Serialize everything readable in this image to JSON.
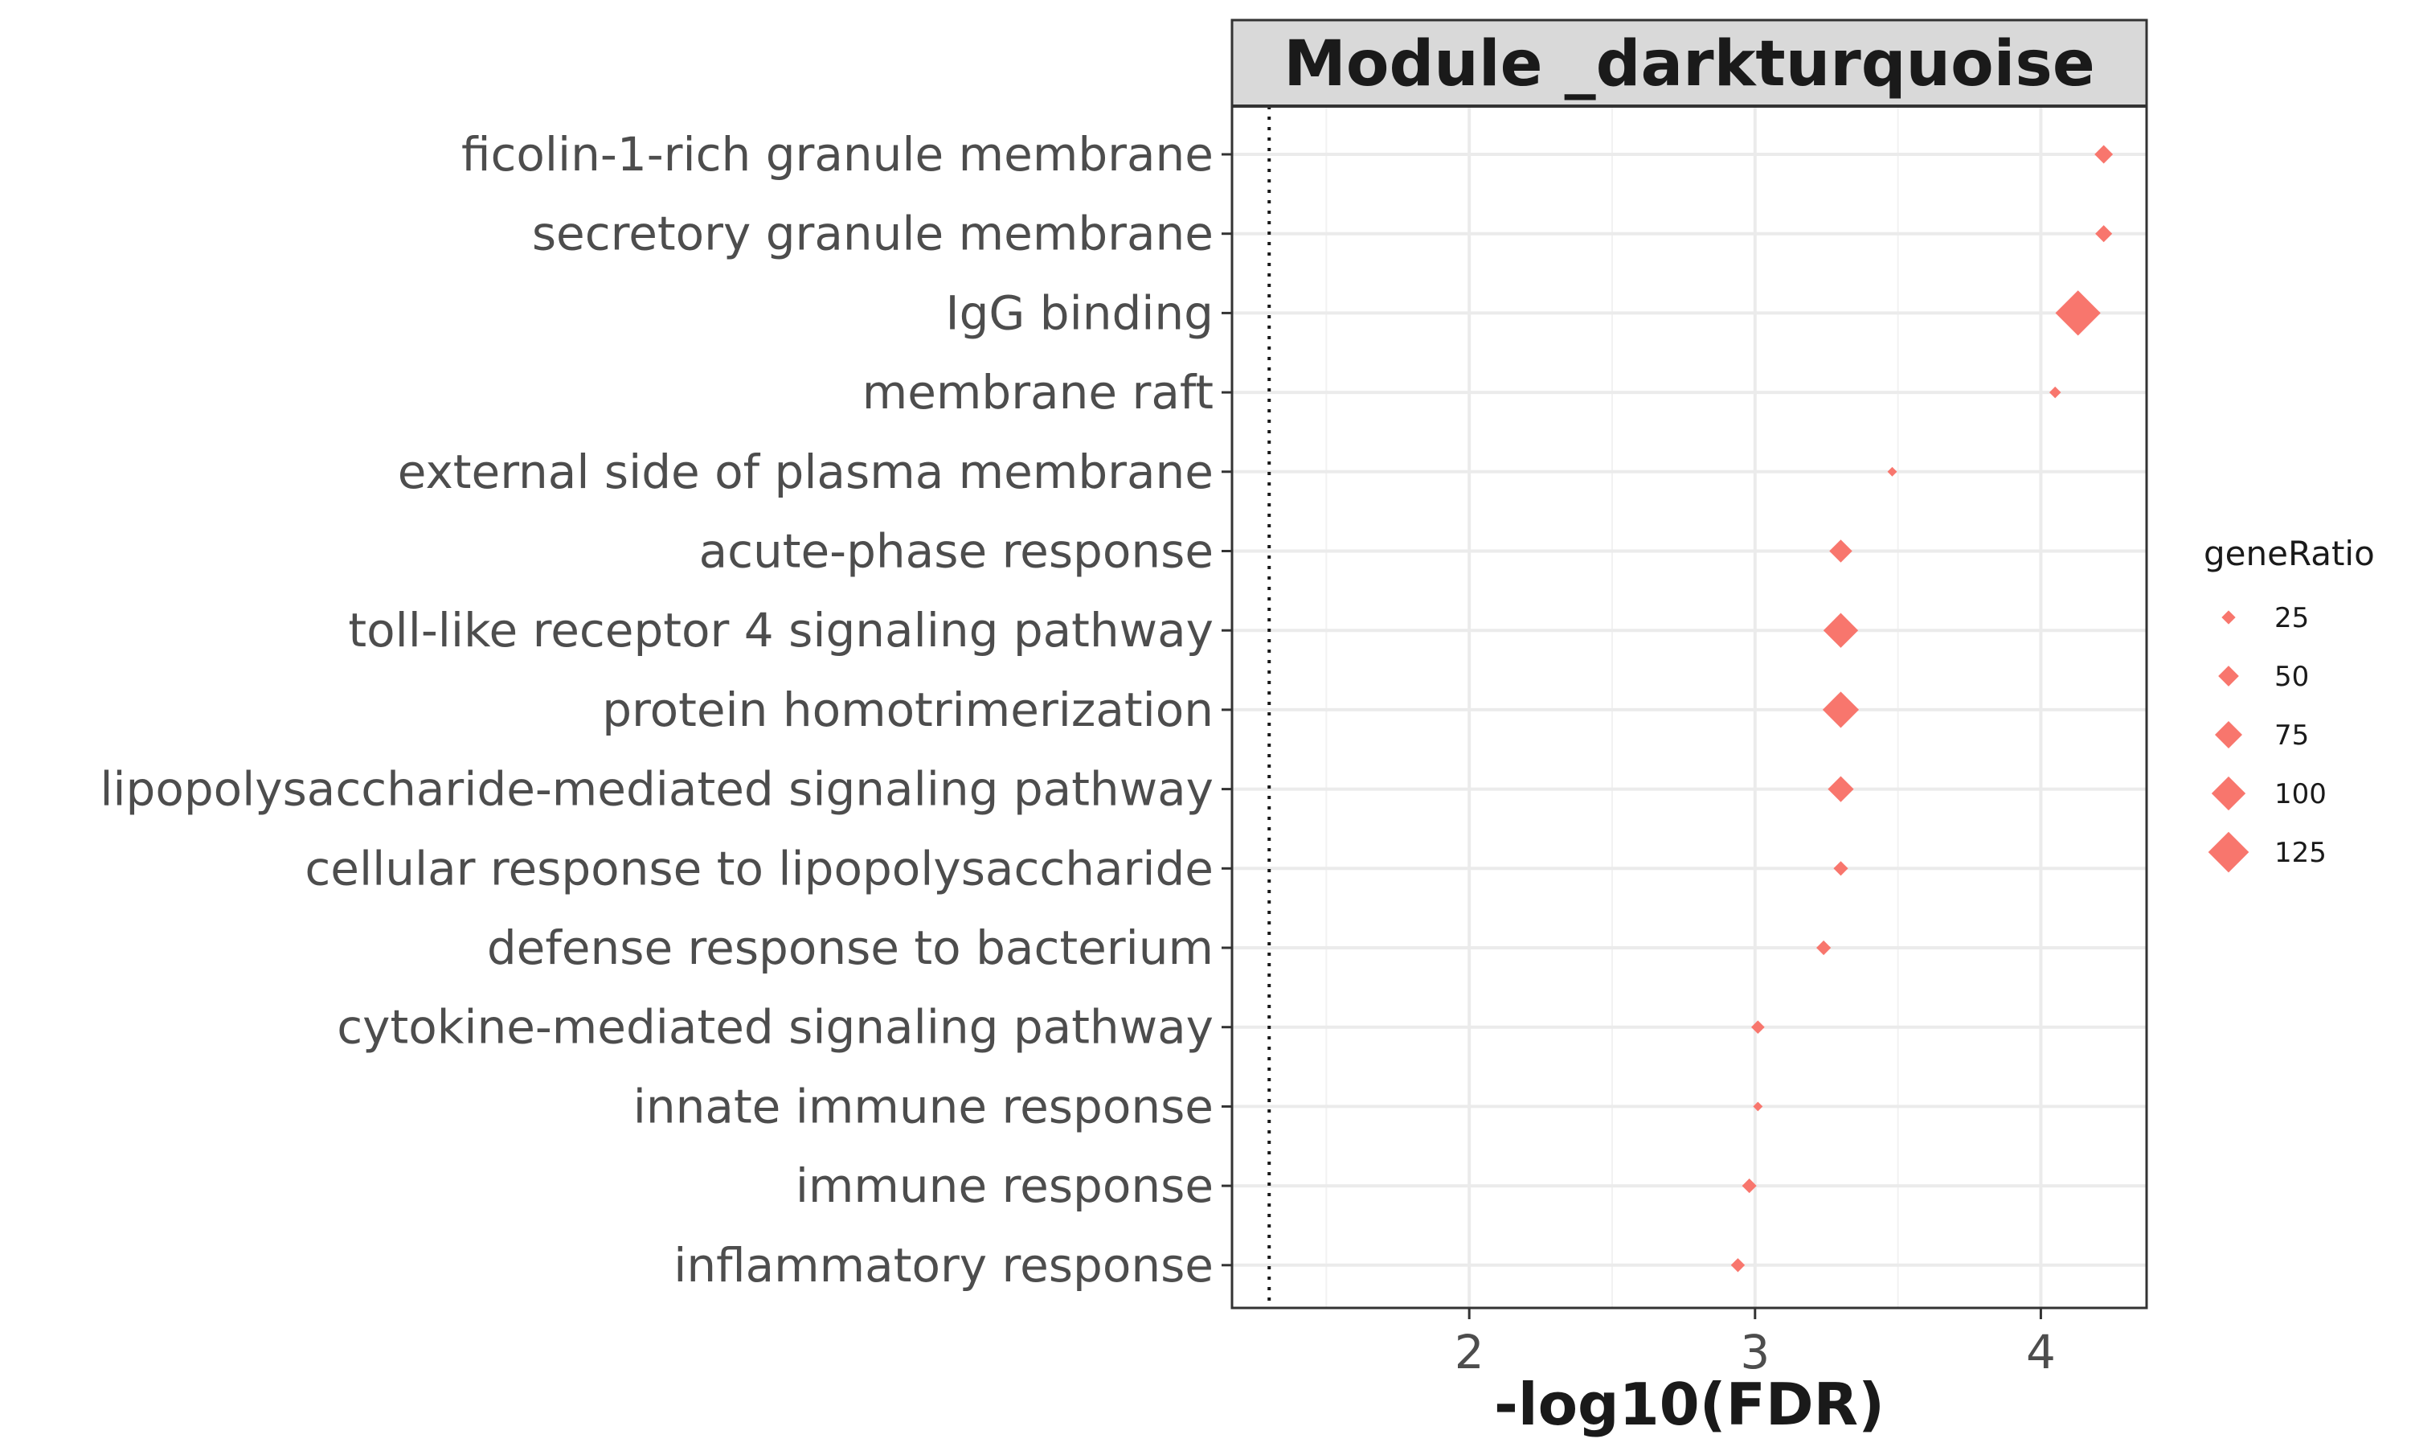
{
  "chart_data": {
    "type": "scatter",
    "title": "Module _darkturquoise",
    "xlabel": "-log10(FDR)",
    "ylabel": "",
    "xlim": [
      1.17,
      4.37
    ],
    "xticks": [
      2,
      3,
      4
    ],
    "xticks_labels": [
      "2",
      "3",
      "4"
    ],
    "reference_line_x": 1.3,
    "grid": true,
    "marker": "diamond",
    "point_color": "#f8766d",
    "legend": {
      "title": "geneRatio",
      "placement": "right",
      "items": [
        {
          "label": "25",
          "value": 25
        },
        {
          "label": "50",
          "value": 50
        },
        {
          "label": "75",
          "value": 75
        },
        {
          "label": "100",
          "value": 100
        },
        {
          "label": "125",
          "value": 125
        }
      ]
    },
    "categories": [
      "ficolin-1-rich granule membrane",
      "secretory granule membrane",
      "IgG binding",
      "membrane raft",
      "external side of plasma membrane",
      "acute-phase response",
      "toll-like receptor 4 signaling pathway",
      "protein homotrimerization",
      "lipopolysaccharide-mediated signaling pathway",
      "cellular response to lipopolysaccharide",
      "defense response to bacterium",
      "cytokine-mediated signaling pathway",
      "innate immune response",
      "immune response",
      "inflammatory response"
    ],
    "points": [
      {
        "category": "ficolin-1-rich granule membrane",
        "x": 4.22,
        "geneRatio": 35
      },
      {
        "category": "secretory granule membrane",
        "x": 4.22,
        "geneRatio": 30
      },
      {
        "category": "IgG binding",
        "x": 4.13,
        "geneRatio": 125
      },
      {
        "category": "membrane raft",
        "x": 4.05,
        "geneRatio": 12
      },
      {
        "category": "external side of plasma membrane",
        "x": 3.48,
        "geneRatio": 5
      },
      {
        "category": "acute-phase response",
        "x": 3.3,
        "geneRatio": 50
      },
      {
        "category": "toll-like receptor 4 signaling pathway",
        "x": 3.3,
        "geneRatio": 90
      },
      {
        "category": "protein homotrimerization",
        "x": 3.3,
        "geneRatio": 95
      },
      {
        "category": "lipopolysaccharide-mediated signaling pathway",
        "x": 3.3,
        "geneRatio": 60
      },
      {
        "category": "cellular response to lipopolysaccharide",
        "x": 3.3,
        "geneRatio": 22
      },
      {
        "category": "defense response to bacterium",
        "x": 3.24,
        "geneRatio": 22
      },
      {
        "category": "cytokine-mediated signaling pathway",
        "x": 3.01,
        "geneRatio": 18
      },
      {
        "category": "innate immune response",
        "x": 3.01,
        "geneRatio": 5
      },
      {
        "category": "immune response",
        "x": 2.98,
        "geneRatio": 22
      },
      {
        "category": "inflammatory response",
        "x": 2.94,
        "geneRatio": 20
      }
    ]
  }
}
